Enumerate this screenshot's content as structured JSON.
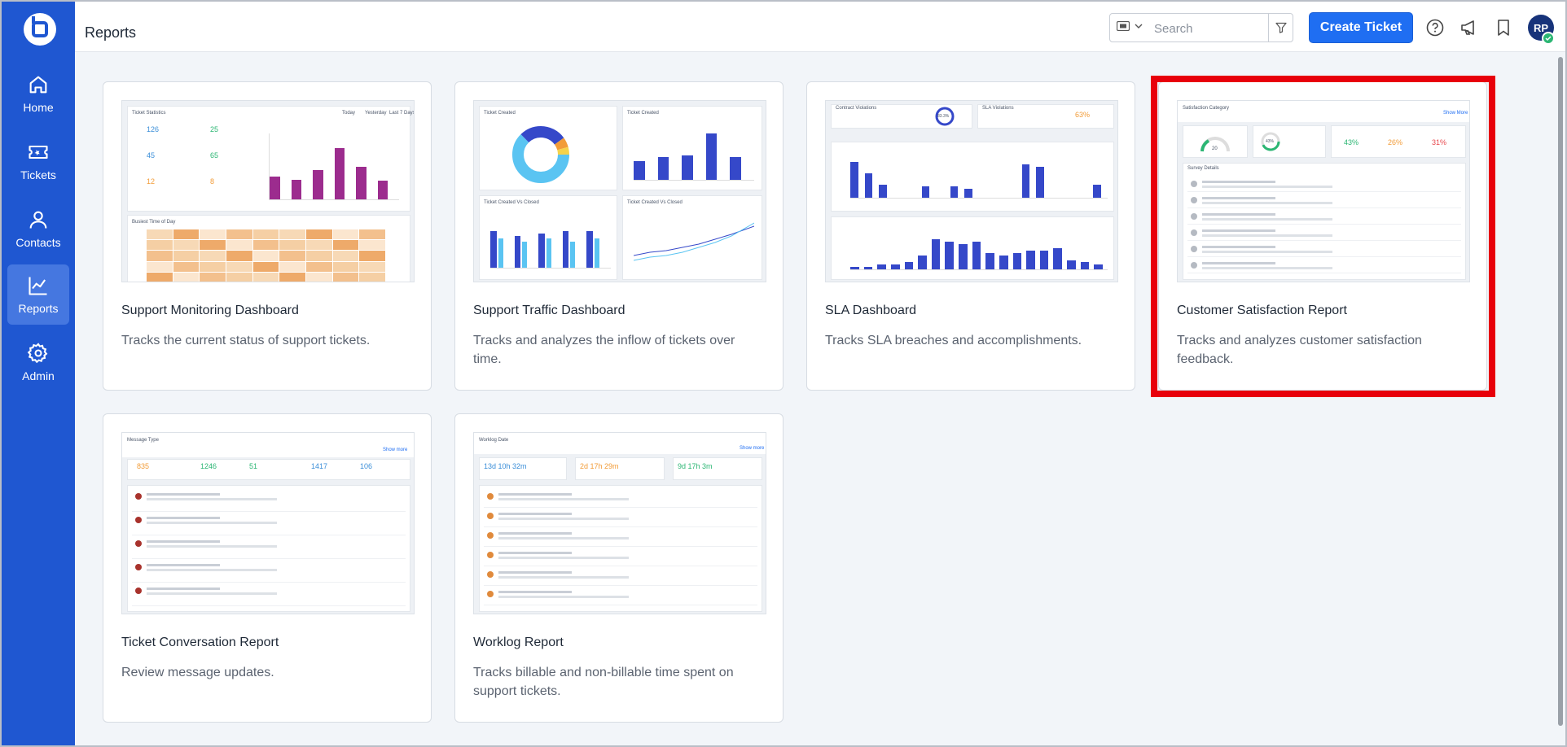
{
  "sidebar": {
    "items": [
      {
        "label": "Home",
        "icon": "home-icon"
      },
      {
        "label": "Tickets",
        "icon": "ticket-icon"
      },
      {
        "label": "Contacts",
        "icon": "contacts-icon"
      },
      {
        "label": "Reports",
        "icon": "reports-icon",
        "active": true
      },
      {
        "label": "Admin",
        "icon": "gear-icon"
      }
    ]
  },
  "header": {
    "title": "Reports",
    "search_placeholder": "Search",
    "create_label": "Create Ticket",
    "avatar_initials": "RP"
  },
  "colors": {
    "sidebar": "#1f57d1",
    "primary_button": "#1f6ef2",
    "highlight": "#e8000b",
    "bars_purple": "#9c2c8e",
    "bars_blue": "#3548c9"
  },
  "cards": [
    {
      "title": "Support Monitoring Dashboard",
      "desc": "Tracks the current status of support tickets."
    },
    {
      "title": "Support Traffic Dashboard",
      "desc": "Tracks and analyzes the inflow of tickets over time."
    },
    {
      "title": "SLA Dashboard",
      "desc": "Tracks SLA breaches and accomplishments."
    },
    {
      "title": "Customer Satisfaction Report",
      "desc": "Tracks and analyzes customer satisfaction feedback.",
      "highlighted": true
    },
    {
      "title": "Ticket Conversation Report",
      "desc": "Review message updates."
    },
    {
      "title": "Worklog Report",
      "desc": "Tracks billable and non-billable time spent on support tickets."
    }
  ],
  "thumbs": {
    "monitoring": {
      "stats": [
        {
          "value": "126",
          "color": "#3a8ed8"
        },
        {
          "value": "25",
          "color": "#2bb673"
        },
        {
          "value": "45",
          "color": "#3a8ed8"
        },
        {
          "value": "65",
          "color": "#2bb673"
        },
        {
          "value": "12",
          "color": "#f29c38"
        },
        {
          "value": "8",
          "color": "#f29c38"
        }
      ],
      "bar_values": [
        0.35,
        0.3,
        0.45,
        0.78,
        0.5,
        0.28
      ]
    },
    "traffic": {
      "bars_top": [
        0.35,
        0.42,
        0.45,
        0.85,
        0.42
      ],
      "bars_bottom_dark": [
        0.7,
        0.6,
        0.65,
        0.7,
        0.7
      ],
      "bars_bottom_light": [
        0.55,
        0.5,
        0.55,
        0.5,
        0.55
      ]
    },
    "sla": {
      "percent_a": "83.3%",
      "percent_b": "63%",
      "bars_top": [
        0.8,
        0.55,
        0.3,
        0,
        0,
        0.25,
        0,
        0.25,
        0.2,
        0,
        0,
        0,
        0.75,
        0.7,
        0,
        0,
        0,
        0.3
      ],
      "bars_bottom": [
        0.05,
        0.05,
        0.1,
        0.1,
        0.15,
        0.3,
        0.65,
        0.6,
        0.55,
        0.6,
        0.35,
        0.3,
        0.35,
        0.4,
        0.4,
        0.45,
        0.2,
        0.15,
        0.1
      ]
    },
    "csat": {
      "gauge_value": "20",
      "ring_value": "43%",
      "positive": "43%",
      "neutral": "26%",
      "negative": "31%",
      "row_count": 6
    },
    "conversation": {
      "stats": [
        {
          "value": "835",
          "color": "#f29c38"
        },
        {
          "value": "1246",
          "color": "#2bb673"
        },
        {
          "value": "51",
          "color": "#2bb673"
        },
        {
          "value": "1417",
          "color": "#3a8ed8"
        },
        {
          "value": "106",
          "color": "#3a8ed8"
        }
      ]
    },
    "worklog": {
      "stats": [
        {
          "value": "13d 10h 32m",
          "color": "#3a8ed8"
        },
        {
          "value": "2d 17h 29m",
          "color": "#f29c38"
        },
        {
          "value": "9d 17h 3m",
          "color": "#2bb673"
        }
      ]
    }
  }
}
